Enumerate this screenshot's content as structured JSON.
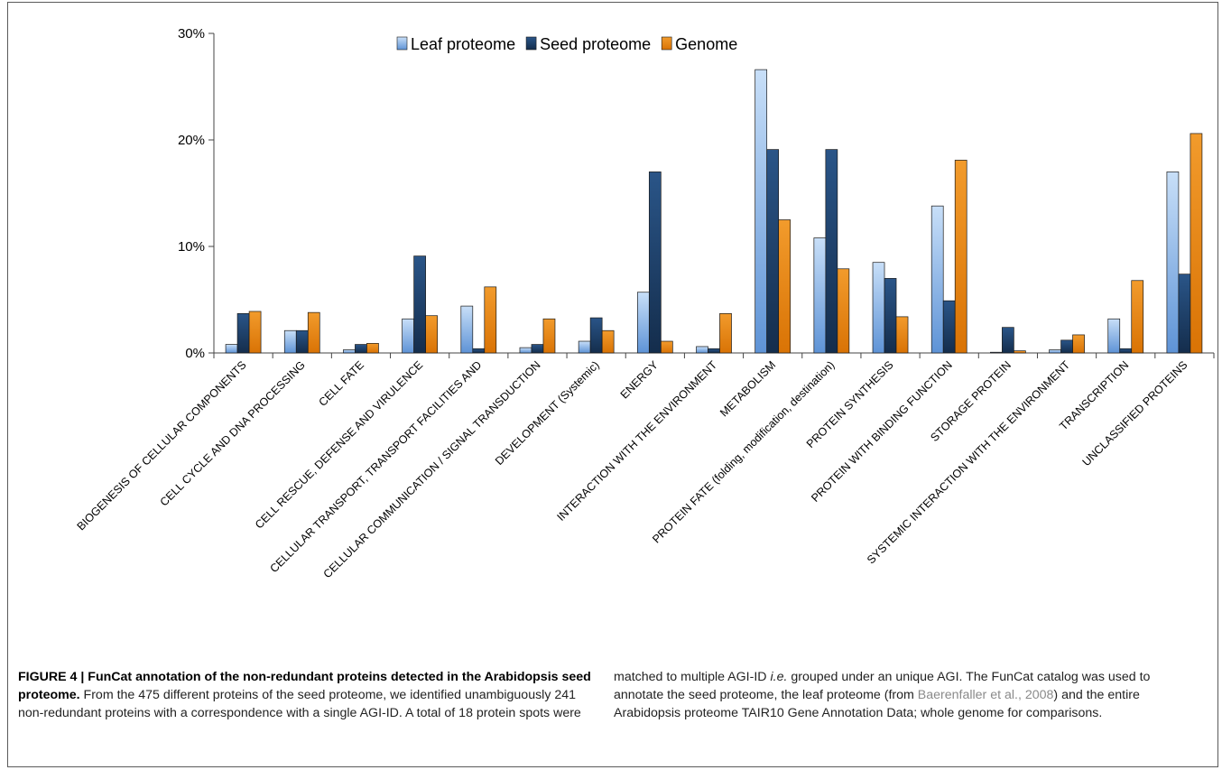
{
  "chart_data": {
    "type": "bar",
    "categories": [
      "BIOGENESIS OF CELLULAR COMPONENTS",
      "CELL CYCLE AND DNA PROCESSING",
      "CELL FATE",
      "CELL RESCUE, DEFENSE AND VIRULENCE",
      "CELLULAR TRANSPORT, TRANSPORT FACILITIES AND",
      "CELLULAR COMMUNICATION / SIGNAL TRANSDUCTION",
      "DEVELOPMENT (Systemic)",
      "ENERGY",
      "INTERACTION WITH THE ENVIRONMENT",
      "METABOLISM",
      "PROTEIN FATE (folding, modification, destination)",
      "PROTEIN SYNTHESIS",
      "PROTEIN WITH BINDING FUNCTION",
      "STORAGE PROTEIN",
      "SYSTEMIC INTERACTION WITH THE ENVIRONMENT",
      "TRANSCRIPTION",
      "UNCLASSIFIED PROTEINS"
    ],
    "series": [
      {
        "name": "Leaf proteome",
        "color": "#8db8ea",
        "values": [
          0.8,
          2.1,
          0.3,
          3.2,
          4.4,
          0.5,
          1.1,
          5.7,
          0.6,
          26.6,
          10.8,
          8.5,
          13.8,
          0.05,
          0.3,
          3.2,
          17.0
        ]
      },
      {
        "name": "Seed proteome",
        "color": "#1d3e66",
        "values": [
          3.7,
          2.1,
          0.8,
          9.1,
          0.4,
          0.8,
          3.3,
          17.0,
          0.4,
          19.1,
          19.1,
          7.0,
          4.9,
          2.4,
          1.2,
          0.4,
          7.4
        ]
      },
      {
        "name": "Genome",
        "color": "#e8850c",
        "values": [
          3.9,
          3.8,
          0.9,
          3.5,
          6.2,
          3.2,
          2.1,
          1.1,
          3.7,
          12.5,
          7.9,
          3.4,
          18.1,
          0.2,
          1.7,
          6.8,
          20.6
        ]
      }
    ],
    "yticks": [
      "0%",
      "10%",
      "20%",
      "30%"
    ],
    "ylim": [
      0,
      30
    ],
    "grid": false,
    "legend_position": "top-center"
  },
  "caption": {
    "figure_label": "FIGURE 4 | FunCat annotation of the non-redundant proteins detected in the Arabidopsis seed proteome.",
    "left_text": " From the 475 different proteins of the seed proteome, we identified unambiguously 241 non-redundant proteins with a correspondence with a single AGI-ID. A total of 18 protein spots were",
    "right_text_1": "matched to multiple AGI-ID ",
    "right_ie": "i.e.",
    "right_text_2": " grouped under an unique AGI. The FunCat catalog was used to annotate the seed proteome, the leaf proteome (from ",
    "right_link": "Baerenfaller et al., 2008",
    "right_text_3": ") and the entire Arabidopsis proteome TAIR10 Gene Annotation Data; whole genome for comparisons."
  }
}
